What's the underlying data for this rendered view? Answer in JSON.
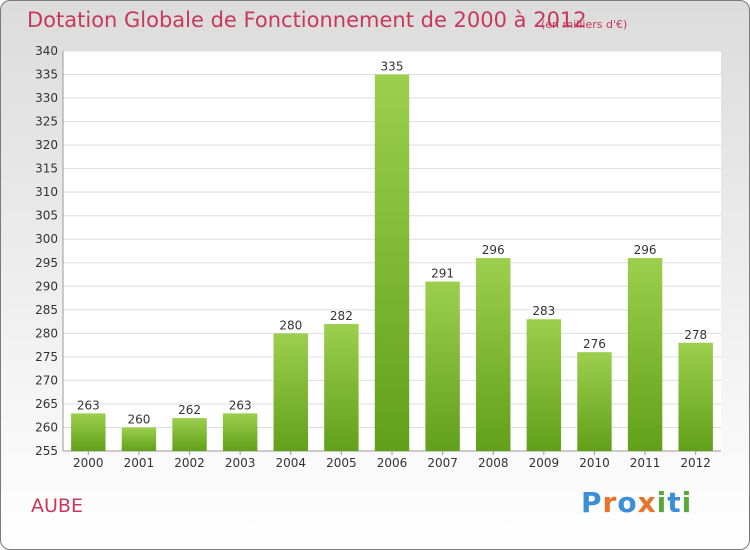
{
  "chart_data": {
    "type": "bar",
    "title": "Dotation Globale de Fonctionnement de 2000 à 2012",
    "subtitle": "(en milliers d'€)",
    "categories": [
      "2000",
      "2001",
      "2002",
      "2003",
      "2004",
      "2005",
      "2006",
      "2007",
      "2008",
      "2009",
      "2010",
      "2011",
      "2012"
    ],
    "values": [
      263,
      260,
      262,
      263,
      280,
      282,
      335,
      291,
      296,
      283,
      276,
      296,
      278
    ],
    "ylim": [
      255,
      340
    ],
    "ytick_step": 5,
    "grid": true,
    "bar_color_top": "#9ccf4d",
    "bar_color_bottom": "#62a01a"
  },
  "region_label": "AUBE",
  "logo": {
    "letters": [
      "P",
      "r",
      "o",
      "x",
      "i",
      "t",
      "i"
    ],
    "colors": [
      "#3b8fd6",
      "#e8742a",
      "#3b8fd6",
      "#e8742a",
      "#5aa83a",
      "#3b8fd6",
      "#5aa83a"
    ]
  }
}
